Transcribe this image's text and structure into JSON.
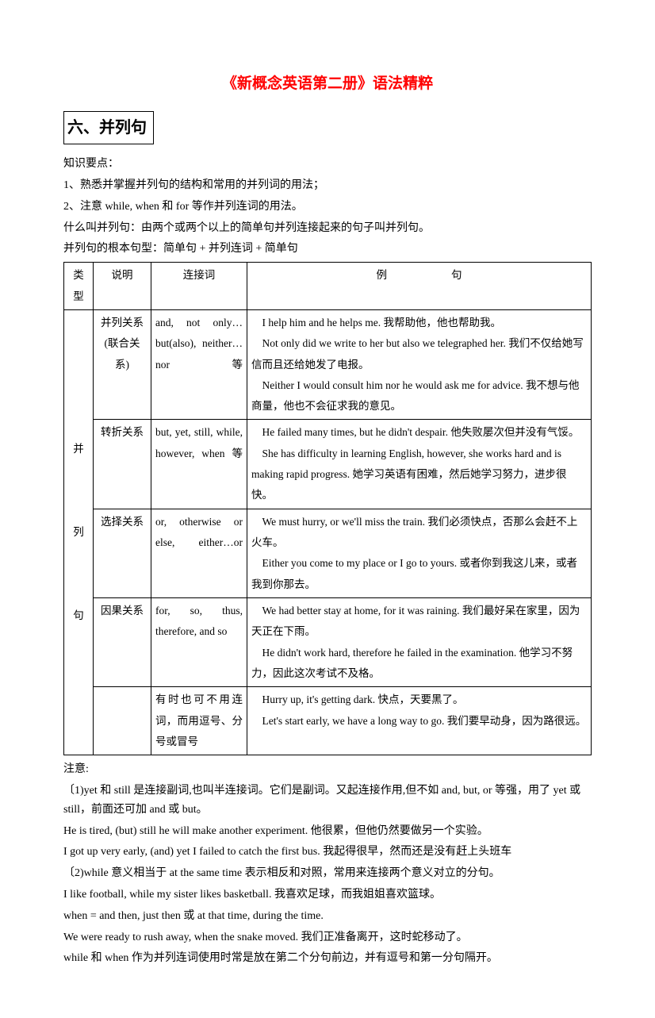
{
  "title": "《新概念英语第二册》语法精粹",
  "section_heading": "六、并列句",
  "intro": {
    "p1": "知识要点：",
    "p2": "1、熟悉并掌握并列句的结构和常用的并列词的用法；",
    "p3": "2、注意 while, when 和 for 等作并列连词的用法。",
    "p4": "什么叫并列句：由两个或两个以上的简单句并列连接起来的句子叫并列句。",
    "p5": "并列句的根本句型：简单句 + 并列连词 + 简单句"
  },
  "table": {
    "headers": {
      "c1": "类型",
      "c2": "说明",
      "c3": "连接词",
      "c4": "例　　　　　　句"
    },
    "type_label": "并\n\n\n\n列\n\n\n\n句",
    "rows": [
      {
        "desc": "并列关系 (联合关系)",
        "conj": "and, not only…but(also), neither…nor等",
        "ex": "　I help him and he helps me. 我帮助他，他也帮助我。\n　Not only did we write to her but also we telegraphed her. 我们不仅给她写信而且还给她发了电报。\n　Neither I would consult him nor he would ask me for advice. 我不想与他商量，他也不会征求我的意见。"
      },
      {
        "desc": "转折关系",
        "conj": "but, yet, still, while, however, when 等",
        "ex": "　He failed many times, but he didn't despair. 他失败屡次但并没有气馁。\n　She has difficulty in learning English, however, she works hard and is making rapid progress. 她学习英语有困难，然后她学习努力，进步很快。"
      },
      {
        "desc": "选择关系",
        "conj": "or, otherwise or else, either…or",
        "ex": "　We must hurry, or we'll miss the train. 我们必须快点，否那么会赶不上火车。\n　Either you come to my place or I go to yours. 或者你到我这儿来，或者我到你那去。"
      },
      {
        "desc": "因果关系",
        "conj": "for, so, thus, therefore, and so",
        "ex": "　We had better stay at home, for it was raining. 我们最好呆在家里，因为天正在下雨。\n　He didn't work hard, therefore he failed in the examination. 他学习不努力，因此这次考试不及格。"
      },
      {
        "desc": "",
        "conj": "有时也可不用连词，而用逗号、分号或冒号",
        "ex": "　Hurry up, it's getting dark. 快点，天要黑了。\n　Let's start early, we have a long way to go. 我们要早动身，因为路很远。"
      }
    ]
  },
  "notes": {
    "h": "注意:",
    "n1": "〔1)yet 和 still 是连接副词,也叫半连接词。它们是副词。又起连接作用,但不如 and, but, or 等强，用了 yet 或 still，前面还可加 and 或 but。",
    "n2": "He is tired, (but) still he will make another experiment. 他很累，但他仍然要做另一个实验。",
    "n3": "I got up very early, (and) yet I failed to catch the first bus. 我起得很早，然而还是没有赶上头班车",
    "n4": "〔2)while 意义相当于 at the same time 表示相反和对照，常用来连接两个意义对立的分句。",
    "n5": "I like football, while my sister likes basketball. 我喜欢足球，而我姐姐喜欢篮球。",
    "n6": "when = and then, just then 或 at that time, during the time.",
    "n7": "We were ready to rush away, when the snake moved. 我们正准备离开，这时蛇移动了。",
    "n8": "while 和 when 作为并列连词使用时常是放在第二个分句前边，并有逗号和第一分句隔开。"
  },
  "colors": {
    "title": "#ff0000",
    "text": "#000000",
    "border": "#000000",
    "background": "#ffffff"
  }
}
